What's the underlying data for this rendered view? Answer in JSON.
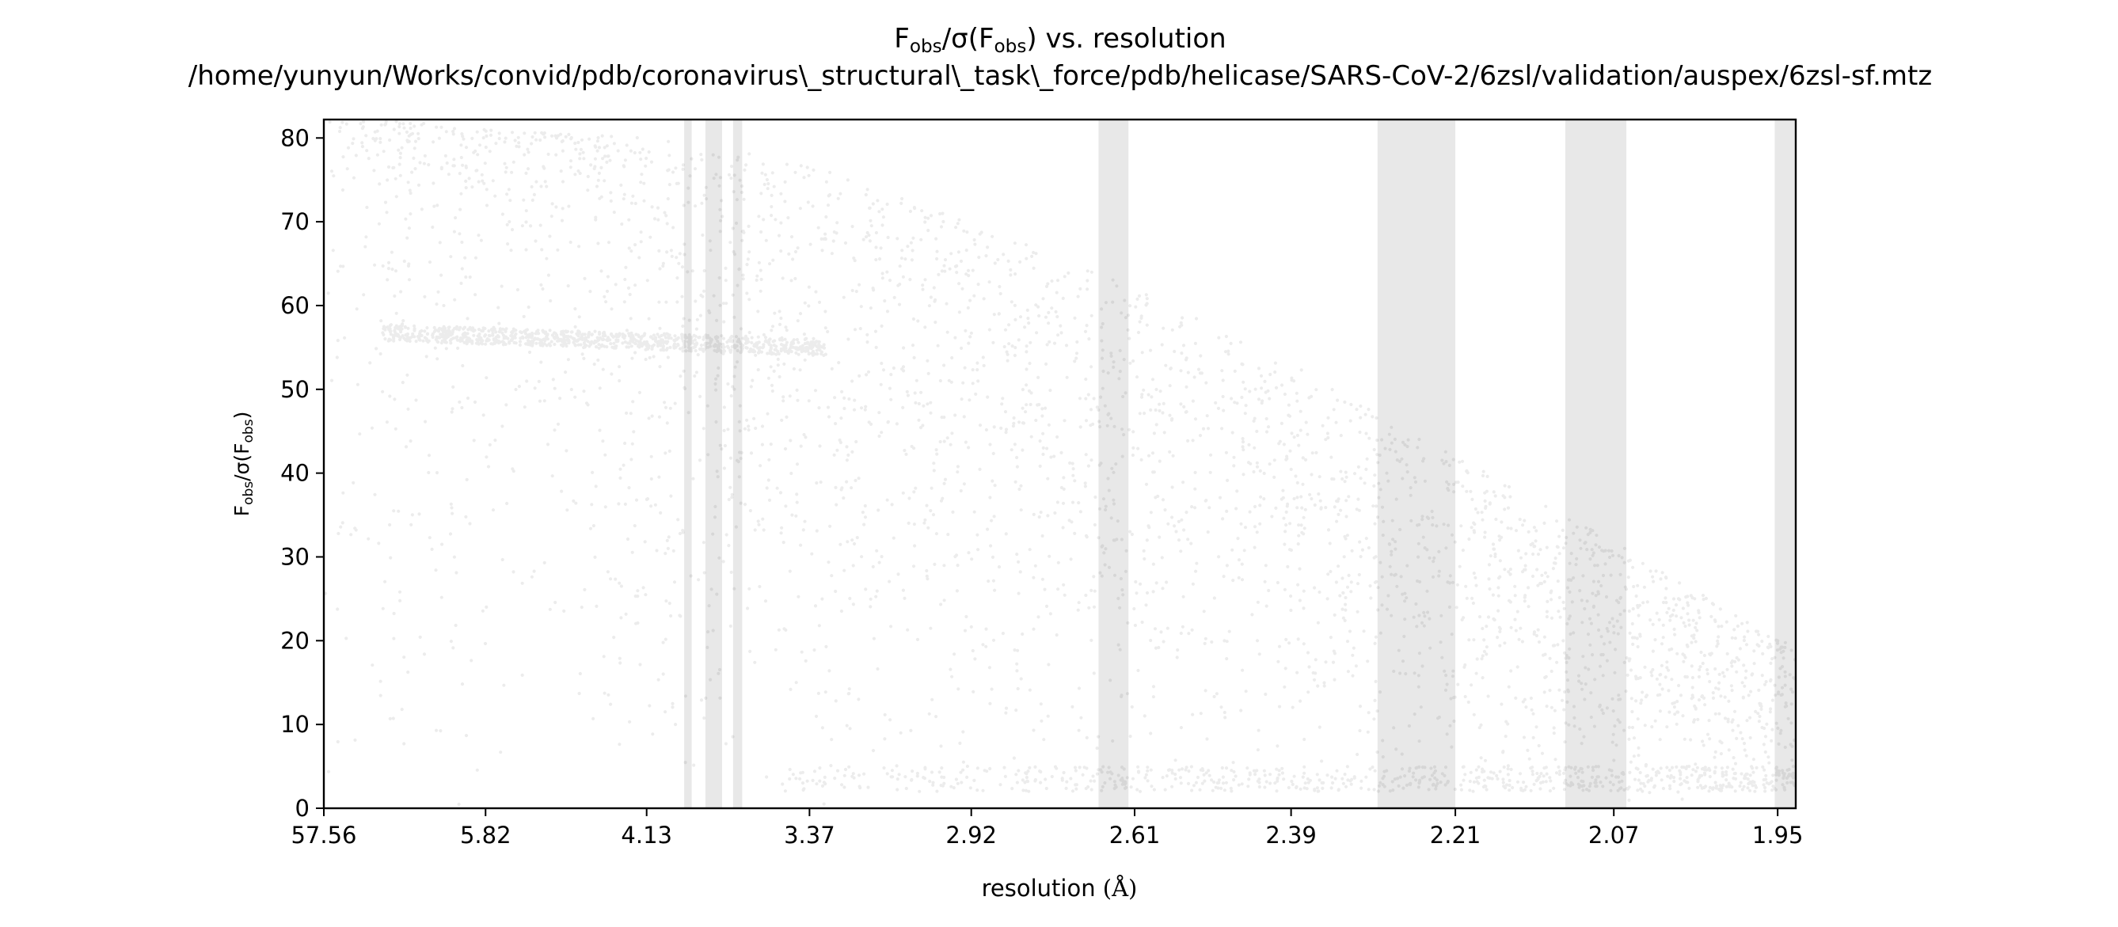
{
  "chart_data": {
    "type": "scatter",
    "title": {
      "line1_prefix": "F",
      "line1_sub1": "obs",
      "line1_mid": "/σ(F",
      "line1_sub2": "obs",
      "line1_suffix": ") vs. resolution",
      "line2": "/home/yunyun/Works/convid/pdb/coronavirus\\_structural\\_task\\_force/pdb/helicase/SARS-CoV-2/6zsl/validation/auspex/6zsl-sf.mtz"
    },
    "xlabel": {
      "text": "resolution ",
      "unit": "(Å)"
    },
    "ylabel": {
      "prefix": "F",
      "sub1": "obs",
      "mid": "/σ(F",
      "sub2": "obs",
      "suffix": ")"
    },
    "xscale": "1/d²",
    "xlim": [
      57.56,
      1.938
    ],
    "ylim": [
      0,
      82.2
    ],
    "xticks": [
      "57.56",
      "5.82",
      "4.13",
      "3.37",
      "2.92",
      "2.61",
      "2.39",
      "2.21",
      "2.07",
      "1.95"
    ],
    "yticks": [
      0,
      10,
      20,
      30,
      40,
      50,
      60,
      70,
      80
    ],
    "grid": false,
    "marker_color": "#000000",
    "ice_ring_color": "#e8e8e8",
    "highlighted_bands": [
      {
        "from": 3.91,
        "to": 3.87
      },
      {
        "from": 3.8,
        "to": 3.72
      },
      {
        "from": 3.67,
        "to": 3.63
      },
      {
        "from": 2.67,
        "to": 2.62
      },
      {
        "from": 2.29,
        "to": 2.21
      },
      {
        "from": 2.11,
        "to": 2.06
      },
      {
        "from": 1.952,
        "to": 1.938
      }
    ],
    "series": [
      {
        "density_profile_x": [
          57.56,
          8.0,
          5.82,
          4.13,
          3.37,
          2.92,
          2.61,
          2.39,
          2.21,
          2.07,
          1.95
        ],
        "upper_envelope_y": [
          82,
          82,
          81,
          80,
          77,
          70,
          62,
          53,
          42,
          32,
          20
        ],
        "baseline_band_y": [
          2,
          5
        ],
        "secondary_streak_y": [
          57,
          55
        ]
      }
    ]
  }
}
